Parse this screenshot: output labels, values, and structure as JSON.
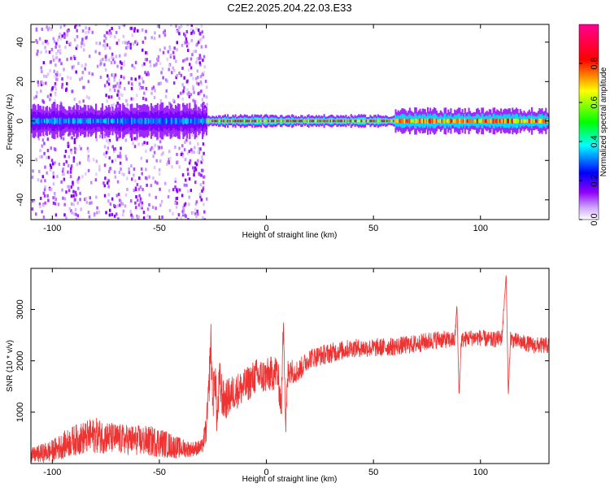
{
  "title": "C2E2.2025.204.22.03.E33",
  "chart_data": [
    {
      "type": "heatmap",
      "xlabel": "Height of straight line (km)",
      "ylabel": "Frequency (Hz)",
      "xlim": [
        -110,
        132
      ],
      "ylim": [
        -50,
        49
      ],
      "xticks": [
        -100,
        -50,
        0,
        50,
        100
      ],
      "yticks": [
        -40,
        -20,
        0,
        20,
        40
      ],
      "colorbar": {
        "label": "Normalized spectral amplitude",
        "range": [
          0.0,
          1.0
        ],
        "ticks": [
          "0.0",
          "0.2",
          "0.4",
          "0.6",
          "0.8"
        ],
        "colormap": [
          "#ffffff",
          "#8f00ff",
          "#0000ff",
          "#00ffff",
          "#00ff00",
          "#ffff00",
          "#ff0000",
          "#ff0090"
        ]
      },
      "ridge": {
        "center_frequency_hz": 0,
        "segments": [
          {
            "x": [
              -110,
              -28
            ],
            "half_width_hz": 4,
            "amplitude": 0.35,
            "scatter_hz": 40
          },
          {
            "x": [
              -28,
              60
            ],
            "half_width_hz": 1.5,
            "amplitude": 0.85,
            "scatter_hz": 0
          },
          {
            "x": [
              60,
              132
            ],
            "half_width_hz": 3,
            "amplitude": 0.8,
            "scatter_hz": 0
          }
        ]
      },
      "grid": false
    },
    {
      "type": "line",
      "xlabel": "Height of straight line (km)",
      "ylabel": "SNR (10 * v/v)",
      "xlim": [
        -110,
        132
      ],
      "ylim": [
        0,
        3800
      ],
      "xticks": [
        -100,
        -50,
        0,
        50,
        100
      ],
      "yticks": [
        1000,
        2000,
        3000
      ],
      "color": "#ee3333",
      "series": [
        {
          "x": [
            -110,
            -100,
            -90,
            -80,
            -70,
            -60,
            -50,
            -45,
            -40,
            -35,
            -30,
            -28,
            -27,
            -26,
            -25,
            -24,
            -23,
            -22,
            -20,
            -15,
            -10,
            -5,
            0,
            5,
            7,
            8,
            9,
            10,
            11,
            12,
            15,
            20,
            30,
            40,
            50,
            60,
            70,
            80,
            88,
            89,
            90,
            91,
            95,
            100,
            105,
            110,
            112,
            113,
            114,
            115,
            120,
            125,
            132
          ],
          "y": [
            150,
            250,
            450,
            550,
            480,
            450,
            420,
            350,
            300,
            280,
            320,
            700,
            1300,
            2400,
            1200,
            1800,
            800,
            1600,
            1200,
            1400,
            1500,
            1700,
            1700,
            1800,
            1100,
            2900,
            700,
            1700,
            1900,
            1800,
            1800,
            2050,
            2150,
            2250,
            2250,
            2280,
            2330,
            2420,
            2400,
            3100,
            1300,
            2400,
            2450,
            2450,
            2400,
            2450,
            3700,
            1300,
            2450,
            2400,
            2350,
            2300,
            2300
          ],
          "noise_amplitude": [
            150,
            220,
            300,
            350,
            300,
            300,
            300,
            250,
            200,
            150,
            150,
            300,
            400,
            500,
            400,
            500,
            400,
            450,
            400,
            350,
            350,
            350,
            350,
            350,
            300,
            300,
            250,
            350,
            300,
            250,
            220,
            200,
            200,
            180,
            180,
            180,
            180,
            180,
            160,
            0,
            0,
            160,
            160,
            160,
            160,
            160,
            0,
            0,
            160,
            160,
            160,
            160,
            160
          ]
        }
      ]
    }
  ]
}
